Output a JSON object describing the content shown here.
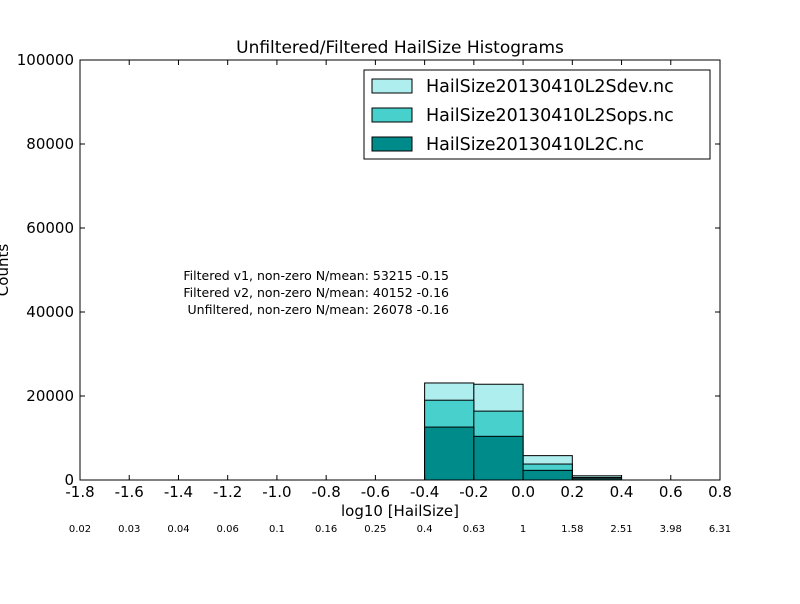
{
  "chart_data": {
    "type": "bar",
    "title": "Unfiltered/Filtered HailSize Histograms",
    "xlabel": "log10 [HailSize]",
    "ylabel": "Counts",
    "xlim": [
      -1.8,
      0.8
    ],
    "ylim": [
      0,
      100000
    ],
    "grid": false,
    "legend_position": "top-right",
    "x_ticks": [
      "-1.8",
      "-1.6",
      "-1.4",
      "-1.2",
      "-1.0",
      "-0.8",
      "-0.6",
      "-0.4",
      "-0.2",
      "0.0",
      "0.2",
      "0.4",
      "0.6",
      "0.8"
    ],
    "y_ticks": [
      "0",
      "20000",
      "40000",
      "60000",
      "80000",
      "100000"
    ],
    "secondary_ticks": [
      "0.02",
      "0.03",
      "0.04",
      "0.06",
      "0.1",
      "0.16",
      "0.25",
      "0.4",
      "0.63",
      "1",
      "1.58",
      "2.51",
      "3.98",
      "6.31"
    ],
    "bin_edges": [
      -0.4,
      -0.2,
      0.0,
      0.2,
      0.4
    ],
    "series": [
      {
        "name": "HailSize20130410L2Sdev.nc",
        "color": "#AFEEEE",
        "values": [
          23100,
          22800,
          5800,
          1000
        ]
      },
      {
        "name": "HailSize20130410L2Sops.nc",
        "color": "#48D1CC",
        "values": [
          19000,
          16400,
          3800,
          600
        ]
      },
      {
        "name": "HailSize20130410L2C.nc",
        "color": "#008B8B",
        "values": [
          12600,
          10400,
          2300,
          300
        ]
      }
    ],
    "annotations": [
      "Filtered v1, non-zero N/mean: 53215 -0.15",
      "Filtered v2, non-zero N/mean: 40152 -0.16",
      "Unfiltered, non-zero N/mean: 26078 -0.16"
    ]
  }
}
